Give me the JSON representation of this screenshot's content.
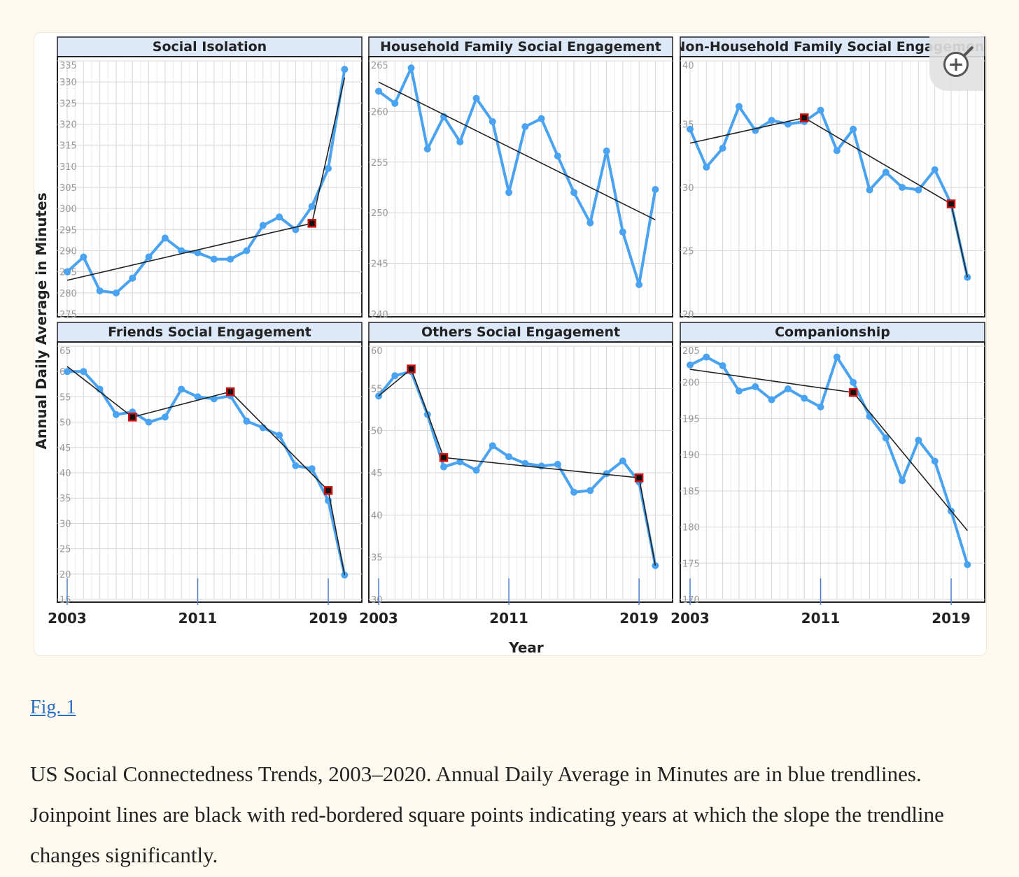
{
  "figure": {
    "y_axis_label": "Annual Daily Average in Minutes",
    "x_axis_label": "Year",
    "x_ticks": [
      "2003",
      "2011",
      "2019"
    ],
    "colors": {
      "data_line": "#4aa3f0",
      "joinpoint_line": "#222222",
      "joinpoint_marker": "#cc1111",
      "title_bar": "#dde9f8",
      "grid": "#d6d6d6"
    },
    "zoom_icon": "zoom-in-icon"
  },
  "caption": {
    "link_text": "Fig. 1",
    "text": "US Social Connectedness Trends, 2003–2020. Annual Daily Average in Minutes are in blue trendlines. Joinpoint lines are black with red-bordered square points indicating years at which the slope the trendline changes significantly."
  },
  "chart_data": [
    {
      "type": "line",
      "title": "Social Isolation",
      "x": [
        2003,
        2004,
        2005,
        2006,
        2007,
        2008,
        2009,
        2010,
        2011,
        2012,
        2013,
        2014,
        2015,
        2016,
        2017,
        2018,
        2019,
        2020
      ],
      "values": [
        285,
        288.5,
        280.5,
        280,
        283.5,
        288.5,
        293,
        290,
        289.5,
        288,
        288,
        290,
        296,
        298,
        295,
        300.5,
        309.5,
        333
      ],
      "ylim": [
        275,
        335
      ],
      "ystep": 5,
      "joinpoint_line": [
        [
          2003,
          283
        ],
        [
          2018,
          296.5
        ],
        [
          2020,
          331
        ]
      ],
      "joinpoints": [
        2018
      ]
    },
    {
      "type": "line",
      "title": "Household Family Social Engagement",
      "x": [
        2003,
        2004,
        2005,
        2006,
        2007,
        2008,
        2009,
        2010,
        2011,
        2012,
        2013,
        2014,
        2015,
        2016,
        2017,
        2018,
        2019,
        2020
      ],
      "values": [
        262,
        260.8,
        264.3,
        256.3,
        259.5,
        257,
        261.3,
        259,
        252,
        258.5,
        259.3,
        255.6,
        252,
        249,
        256.1,
        248.1,
        242.9,
        252.3
      ],
      "ylim": [
        240,
        265
      ],
      "ystep": 5,
      "joinpoint_line": [
        [
          2003,
          262.9
        ],
        [
          2020,
          249.3
        ]
      ],
      "joinpoints": []
    },
    {
      "type": "line",
      "title": "Non-Household Family Social Engagement",
      "x": [
        2003,
        2004,
        2005,
        2006,
        2007,
        2008,
        2009,
        2010,
        2011,
        2012,
        2013,
        2014,
        2015,
        2016,
        2017,
        2018,
        2019,
        2020
      ],
      "values": [
        34.6,
        31.6,
        33.1,
        36.4,
        34.5,
        35.3,
        35,
        35.2,
        36.1,
        32.9,
        34.6,
        29.8,
        31.2,
        30,
        29.8,
        31.4,
        28.7,
        22.9
      ],
      "ylim": [
        20,
        40
      ],
      "ystep": 5,
      "joinpoint_line": [
        [
          2003,
          33.5
        ],
        [
          2010,
          35.5
        ],
        [
          2019,
          28.7
        ],
        [
          2020,
          22.9
        ]
      ],
      "joinpoints": [
        2010,
        2019
      ]
    },
    {
      "type": "line",
      "title": "Friends Social Engagement",
      "x": [
        2003,
        2004,
        2005,
        2006,
        2007,
        2008,
        2009,
        2010,
        2011,
        2012,
        2013,
        2014,
        2015,
        2016,
        2017,
        2018,
        2019,
        2020
      ],
      "values": [
        60,
        60,
        56.5,
        51.5,
        52,
        50,
        51,
        56.5,
        55,
        54.6,
        55.2,
        50.2,
        48.9,
        47.4,
        41.4,
        40.8,
        34.5,
        19.8
      ],
      "ylim": [
        15,
        65
      ],
      "ystep": 5,
      "joinpoint_line": [
        [
          2003,
          61
        ],
        [
          2007,
          51
        ],
        [
          2013,
          56
        ],
        [
          2019,
          36.5
        ],
        [
          2020,
          19.8
        ]
      ],
      "joinpoints": [
        2007,
        2013,
        2019
      ]
    },
    {
      "type": "line",
      "title": "Others Social Engagement",
      "x": [
        2003,
        2004,
        2005,
        2006,
        2007,
        2008,
        2009,
        2010,
        2011,
        2012,
        2013,
        2014,
        2015,
        2016,
        2017,
        2018,
        2019,
        2020
      ],
      "values": [
        54.1,
        56.5,
        57,
        51.9,
        45.7,
        46.3,
        45.3,
        48.2,
        46.9,
        46.1,
        45.8,
        46,
        42.7,
        42.9,
        44.9,
        46.4,
        43.9,
        34
      ],
      "ylim": [
        30,
        60
      ],
      "ystep": 5,
      "joinpoint_line": [
        [
          2003,
          54.1
        ],
        [
          2005,
          57.3
        ],
        [
          2007,
          46.8
        ],
        [
          2019,
          44.4
        ],
        [
          2020,
          34
        ]
      ],
      "joinpoints": [
        2005,
        2007,
        2019
      ]
    },
    {
      "type": "line",
      "title": "Companionship",
      "x": [
        2003,
        2004,
        2005,
        2006,
        2007,
        2008,
        2009,
        2010,
        2011,
        2012,
        2013,
        2014,
        2015,
        2016,
        2017,
        2018,
        2019,
        2020
      ],
      "values": [
        202.4,
        203.5,
        202.3,
        198.8,
        199.4,
        197.6,
        199.1,
        197.8,
        196.6,
        203.5,
        200,
        195.3,
        192.3,
        186.4,
        192,
        189.1,
        182.2,
        174.8
      ],
      "ylim": [
        170,
        205
      ],
      "ystep": 5,
      "joinpoint_line": [
        [
          2003,
          201.8
        ],
        [
          2013,
          198.6
        ],
        [
          2020,
          179.5
        ]
      ],
      "joinpoints": [
        2013
      ]
    }
  ]
}
